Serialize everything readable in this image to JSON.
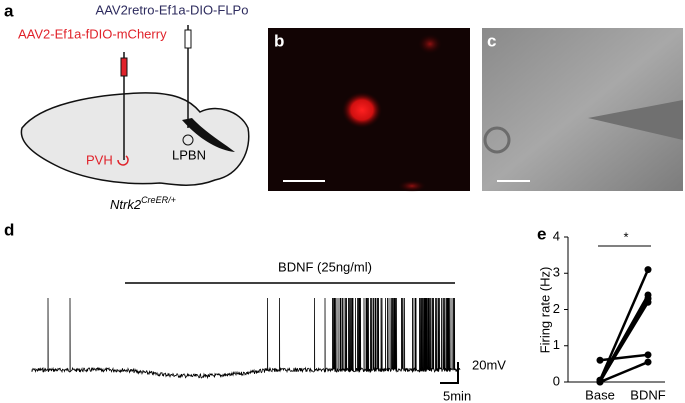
{
  "panels": {
    "a": "a",
    "b": "b",
    "c": "c",
    "d": "d",
    "e": "e"
  },
  "diagram": {
    "virus_retro": "AAV2retro-Ef1a-DIO-FLPo",
    "virus_mcherry": "AAV2-Ef1a-fDIO-mCherry",
    "pvh": "PVH",
    "lpbn": "LPBN",
    "mouse_line": "Ntrk2",
    "mouse_allele": "CreER/+"
  },
  "trace": {
    "drug_label": "BDNF (25ng/ml)",
    "scale_voltage": "20mV",
    "scale_time": "5min"
  },
  "chart_data": {
    "type": "paired",
    "ylabel": "Firing rate (Hz)",
    "categories": [
      "Base",
      "BDNF"
    ],
    "ylim": [
      0,
      4
    ],
    "yticks": [
      0,
      1,
      2,
      3,
      4
    ],
    "significance": "*",
    "color": "#000000",
    "series": [
      {
        "values": [
          0.6,
          0.75
        ]
      },
      {
        "values": [
          0.05,
          3.1
        ]
      },
      {
        "values": [
          0.05,
          2.4
        ]
      },
      {
        "values": [
          0.02,
          2.2
        ]
      },
      {
        "values": [
          0,
          2.3
        ]
      },
      {
        "values": [
          0,
          0.55
        ]
      }
    ]
  }
}
